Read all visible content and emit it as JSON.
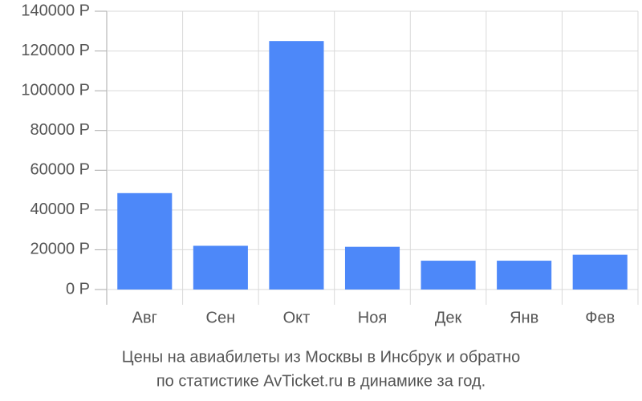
{
  "chart_data": {
    "type": "bar",
    "title": [
      "Цены на авиабилеты из Москвы в Инсбрук и обратно",
      "по статистике AvTicket.ru в динамике за год."
    ],
    "categories": [
      "Авг",
      "Сен",
      "Окт",
      "Ноя",
      "Дек",
      "Янв",
      "Фев"
    ],
    "values": [
      48500,
      22000,
      125000,
      21500,
      14500,
      14500,
      17500
    ],
    "color": "#4d88f9",
    "ylim": [
      0,
      140000
    ],
    "yticks": [
      {
        "value": 0,
        "label": "0 Р"
      },
      {
        "value": 20000,
        "label": "20000 Р"
      },
      {
        "value": 40000,
        "label": "40000 Р"
      },
      {
        "value": 60000,
        "label": "60000 Р"
      },
      {
        "value": 80000,
        "label": "80000 Р"
      },
      {
        "value": 100000,
        "label": "100000 Р"
      },
      {
        "value": 120000,
        "label": "120000 Р"
      },
      {
        "value": 140000,
        "label": "140000 Р"
      }
    ],
    "grid": true
  }
}
